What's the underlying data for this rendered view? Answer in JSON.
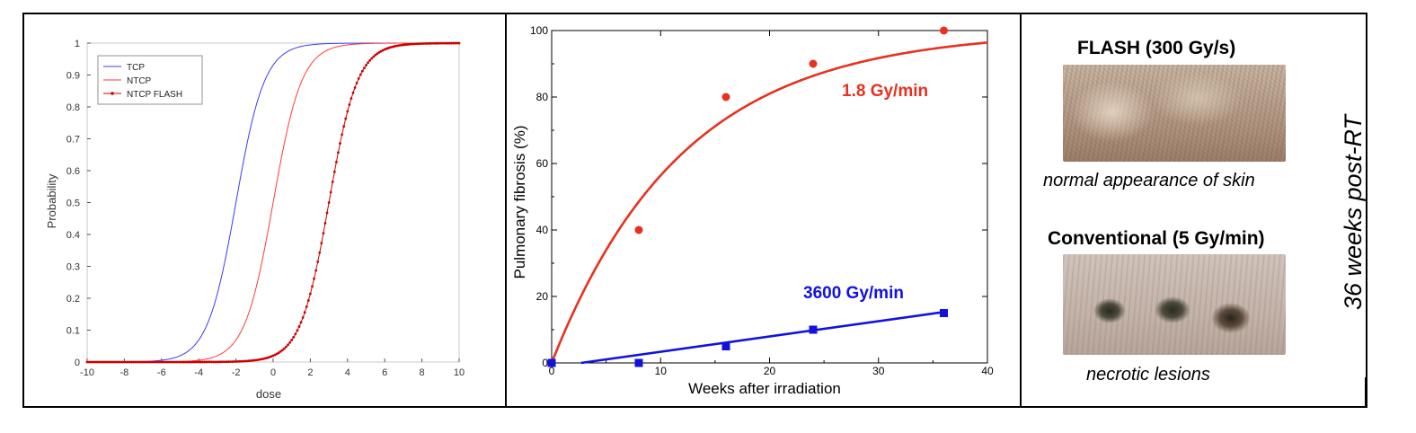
{
  "chart_data": [
    {
      "type": "line",
      "xlabel": "dose",
      "ylabel": "Probability",
      "xlim": [
        -10,
        10
      ],
      "ylim": [
        0,
        1
      ],
      "xticks": [
        -10,
        -8,
        -6,
        -4,
        -2,
        0,
        2,
        4,
        6,
        8,
        10
      ],
      "yticks": [
        0,
        0.1,
        0.2,
        0.3,
        0.4,
        0.5,
        0.6,
        0.7,
        0.8,
        0.9,
        1
      ],
      "ytick_labels": [
        "0",
        "0.1",
        "0.2",
        "0.3",
        "0.4",
        "0.5",
        "0.6",
        "0.7",
        "0.8",
        "0.9",
        "1"
      ],
      "legend_position": "top-left",
      "series": [
        {
          "name": "TCP",
          "color": "#3a3aff",
          "marker": "none",
          "center": -2,
          "slope": 1.3
        },
        {
          "name": "NTCP",
          "color": "#ff3a3a",
          "marker": "none",
          "center": 0,
          "slope": 1.3
        },
        {
          "name": "NTCP FLASH",
          "color": "#cc0000",
          "marker": "dot",
          "center": 3,
          "slope": 1.3
        }
      ]
    },
    {
      "type": "scatter",
      "xlabel": "Weeks after irradiation",
      "ylabel": "Pulmonary fibrosis (%)",
      "xlim": [
        0,
        40
      ],
      "ylim": [
        0,
        100
      ],
      "xticks": [
        0,
        10,
        20,
        30,
        40
      ],
      "yticks": [
        0,
        20,
        40,
        60,
        80,
        100
      ],
      "series": [
        {
          "name": "1.8 Gy/min",
          "color": "#e8311f",
          "marker": "circle",
          "points": [
            [
              0,
              0
            ],
            [
              8,
              40
            ],
            [
              16,
              80
            ],
            [
              24,
              90
            ],
            [
              36,
              100
            ]
          ],
          "fit": {
            "form": "exponential",
            "asymptote": 100,
            "rate": 0.083
          }
        },
        {
          "name": "3600 Gy/min",
          "color": "#1212e0",
          "marker": "square",
          "points": [
            [
              0,
              0
            ],
            [
              8,
              0
            ],
            [
              16,
              5
            ],
            [
              24,
              10
            ],
            [
              36,
              15
            ]
          ],
          "fit": {
            "form": "linear",
            "x_start": 2.7,
            "slope": 0.46
          }
        }
      ]
    }
  ],
  "photos": {
    "flash_title": "FLASH (300 Gy/s)",
    "flash_caption": "normal appearance of skin",
    "conv_title": "Conventional (5 Gy/min)",
    "conv_caption": "necrotic lesions",
    "side_title": "36 weeks post-RT"
  }
}
